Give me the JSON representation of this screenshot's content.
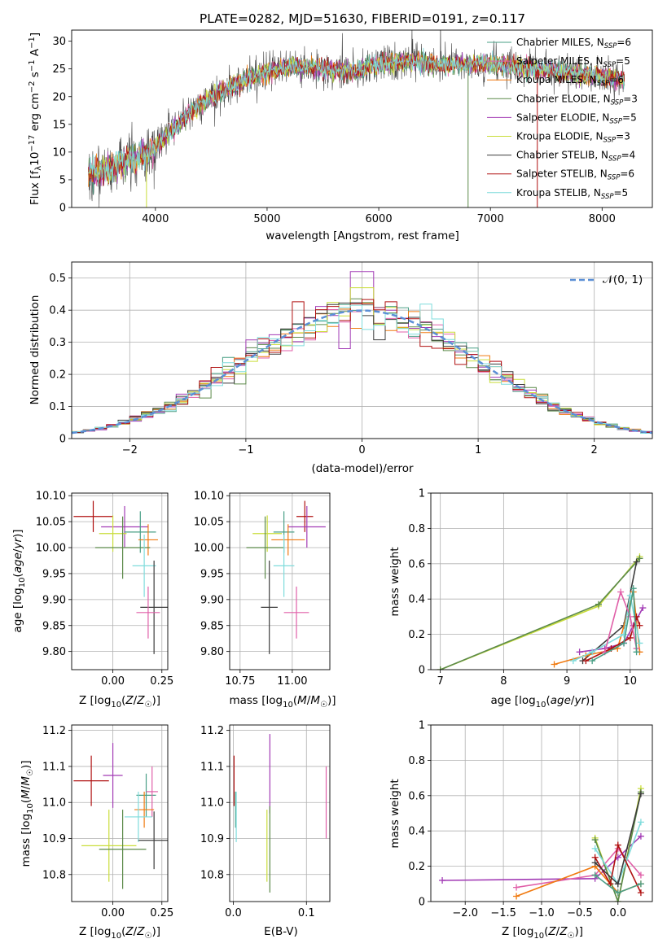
{
  "palette": [
    "#4a9f86",
    "#e05fa8",
    "#f07a10",
    "#5c8a4a",
    "#a23bb5",
    "#c9dd3a",
    "#3c3c3c",
    "#b01010",
    "#7fdcdc"
  ],
  "chart_data": [
    {
      "id": "spectrum",
      "type": "line",
      "title": "PLATE=0282, MJD=51630, FIBERID=0191, z=0.117",
      "xlabel": "wavelength [Angstrom, rest frame]",
      "ylabel": "Flux [f_λ 10^-17 erg cm^-2 s^-1 A^-1]",
      "xlim": [
        3250,
        8450
      ],
      "ylim": [
        0,
        32
      ],
      "xticks": [
        4000,
        5000,
        6000,
        7000,
        8000
      ],
      "yticks": [
        0,
        5,
        10,
        15,
        20,
        25,
        30
      ],
      "x_range": [
        3400,
        8200
      ],
      "profile_x": [
        3400,
        3600,
        3800,
        3950,
        4100,
        4300,
        4500,
        4800,
        5000,
        5200,
        5500,
        5800,
        6000,
        6300,
        6600,
        7000,
        7400,
        7800,
        8200
      ],
      "profile_y": [
        6,
        7,
        9,
        9.5,
        13,
        17,
        20,
        23,
        24.5,
        25.5,
        25,
        24.5,
        26,
        26.5,
        25.5,
        26,
        25,
        24,
        23
      ],
      "legend": [
        {
          "pre": "Chabrier MILES, N",
          "sub": "SSP",
          "post": "=6"
        },
        {
          "pre": "Salpeter MILES, N",
          "sub": "SSP",
          "post": "=5"
        },
        {
          "pre": "Kroupa MILES, N",
          "sub": "SSP",
          "post": "=6"
        },
        {
          "pre": "Chabrier ELODIE, N",
          "sub": "SSP",
          "post": "=3"
        },
        {
          "pre": "Salpeter ELODIE, N",
          "sub": "SSP",
          "post": "=5"
        },
        {
          "pre": "Kroupa ELODIE, N",
          "sub": "SSP",
          "post": "=3"
        },
        {
          "pre": "Chabrier STELIB, N",
          "sub": "SSP",
          "post": "=4"
        },
        {
          "pre": "Salpeter STELIB, N",
          "sub": "SSP",
          "post": "=6"
        },
        {
          "pre": "Kroupa STELIB, N",
          "sub": "SSP",
          "post": "=5"
        }
      ],
      "drops": [
        {
          "x": 3920,
          "series": 5
        },
        {
          "x": 6800,
          "series": 3
        },
        {
          "x": 7420,
          "series": 7
        }
      ]
    },
    {
      "id": "residuals",
      "type": "histogram",
      "xlabel": "(data-model)/error",
      "ylabel": "Normed distribution",
      "xlim": [
        -2.5,
        2.5
      ],
      "ylim": [
        0,
        0.55
      ],
      "xticks": [
        -2,
        -1,
        0,
        1,
        2
      ],
      "yticks": [
        0.0,
        0.1,
        0.2,
        0.3,
        0.4,
        0.5
      ],
      "bin_width": 0.1,
      "gauss_label": "𝒩(0, 1)"
    },
    {
      "id": "age_vs_Z",
      "type": "scatter",
      "xlabel": "Z [log10(Z/Z☉)]",
      "ylabel": "age [log10(age/yr)]",
      "xlim": [
        -0.21,
        0.28
      ],
      "ylim": [
        9.765,
        10.105
      ],
      "xticks": [
        0.0,
        0.25
      ],
      "xtick_labels": [
        "0.00",
        "0.25"
      ],
      "yticks": [
        9.8,
        9.85,
        9.9,
        9.95,
        10.0,
        10.05,
        10.1
      ],
      "ytick_labels": [
        "9.80",
        "9.85",
        "9.90",
        "9.95",
        "10.00",
        "10.05",
        "10.10"
      ],
      "points": [
        {
          "s": 7,
          "x": -0.1,
          "xe": 0.1,
          "y": 10.06,
          "ye": 0.03
        },
        {
          "s": 4,
          "x": 0.06,
          "xe": 0.12,
          "y": 10.04,
          "ye": 0.04
        },
        {
          "s": 0,
          "x": 0.14,
          "xe": 0.08,
          "y": 10.03,
          "ye": 0.04
        },
        {
          "s": 5,
          "x": 0.0,
          "xe": 0.07,
          "y": 10.027,
          "ye": 0.035
        },
        {
          "s": 2,
          "x": 0.18,
          "xe": 0.05,
          "y": 10.015,
          "ye": 0.03
        },
        {
          "s": 3,
          "x": 0.05,
          "xe": 0.14,
          "y": 10.0,
          "ye": 0.06
        },
        {
          "s": 8,
          "x": 0.16,
          "xe": 0.06,
          "y": 9.965,
          "ye": 0.06
        },
        {
          "s": 6,
          "x": 0.21,
          "xe": 0.07,
          "y": 9.885,
          "ye": 0.09
        },
        {
          "s": 1,
          "x": 0.18,
          "xe": 0.06,
          "y": 9.875,
          "ye": 0.05
        }
      ]
    },
    {
      "id": "age_vs_mass",
      "type": "scatter",
      "xlabel": "mass [log10(M/M☉)]",
      "ylabel": "",
      "xlim": [
        10.7,
        11.18
      ],
      "ylim": [
        9.765,
        10.105
      ],
      "xticks": [
        10.75,
        11.0
      ],
      "xtick_labels": [
        "10.75",
        "11.00"
      ],
      "yticks": [
        9.8,
        9.85,
        9.9,
        9.95,
        10.0,
        10.05,
        10.1
      ],
      "ytick_labels": [
        "9.80",
        "9.85",
        "9.90",
        "9.95",
        "10.00",
        "10.05",
        "10.10"
      ],
      "points": [
        {
          "s": 7,
          "x": 11.06,
          "xe": 0.04,
          "y": 10.06,
          "ye": 0.03
        },
        {
          "s": 4,
          "x": 11.07,
          "xe": 0.09,
          "y": 10.04,
          "ye": 0.04
        },
        {
          "s": 0,
          "x": 10.96,
          "xe": 0.05,
          "y": 10.03,
          "ye": 0.04
        },
        {
          "s": 5,
          "x": 10.88,
          "xe": 0.07,
          "y": 10.027,
          "ye": 0.035
        },
        {
          "s": 2,
          "x": 10.98,
          "xe": 0.08,
          "y": 10.015,
          "ye": 0.03
        },
        {
          "s": 3,
          "x": 10.87,
          "xe": 0.09,
          "y": 10.0,
          "ye": 0.06
        },
        {
          "s": 8,
          "x": 10.96,
          "xe": 0.05,
          "y": 9.965,
          "ye": 0.06
        },
        {
          "s": 6,
          "x": 10.89,
          "xe": 0.04,
          "y": 9.885,
          "ye": 0.09
        },
        {
          "s": 1,
          "x": 11.02,
          "xe": 0.06,
          "y": 9.875,
          "ye": 0.05
        }
      ]
    },
    {
      "id": "weight_vs_age",
      "type": "line",
      "xlabel": "age [log10(age/yr)]",
      "ylabel": "mass weight",
      "xlim": [
        6.85,
        10.35
      ],
      "ylim": [
        0,
        1.0
      ],
      "xticks": [
        7,
        8,
        9,
        10
      ],
      "yticks": [
        0.0,
        0.2,
        0.4,
        0.6,
        0.8,
        1.0
      ],
      "series": [
        {
          "s": 5,
          "x": [
            7.0,
            9.5,
            10.15
          ],
          "y": [
            0.0,
            0.36,
            0.64
          ]
        },
        {
          "s": 3,
          "x": [
            7.0,
            9.5,
            10.15
          ],
          "y": [
            0.0,
            0.37,
            0.63
          ]
        },
        {
          "s": 6,
          "x": [
            9.25,
            9.9,
            10.1
          ],
          "y": [
            0.05,
            0.25,
            0.61
          ]
        },
        {
          "s": 2,
          "x": [
            8.8,
            9.3,
            9.8,
            10.05,
            10.15
          ],
          "y": [
            0.03,
            0.08,
            0.12,
            0.44,
            0.1
          ]
        },
        {
          "s": 4,
          "x": [
            9.2,
            9.6,
            9.9,
            10.05,
            10.2
          ],
          "y": [
            0.1,
            0.12,
            0.15,
            0.25,
            0.35
          ]
        },
        {
          "s": 8,
          "x": [
            9.1,
            9.4,
            9.9,
            10.0,
            10.15
          ],
          "y": [
            0.05,
            0.1,
            0.2,
            0.42,
            0.15
          ]
        },
        {
          "s": 7,
          "x": [
            9.3,
            9.7,
            10.0,
            10.1,
            10.15
          ],
          "y": [
            0.05,
            0.12,
            0.18,
            0.3,
            0.25
          ]
        },
        {
          "s": 1,
          "x": [
            9.6,
            9.85,
            10.0,
            10.1
          ],
          "y": [
            0.1,
            0.44,
            0.3,
            0.12
          ]
        },
        {
          "s": 0,
          "x": [
            9.4,
            9.9,
            10.05,
            10.1
          ],
          "y": [
            0.05,
            0.15,
            0.46,
            0.1
          ]
        }
      ]
    },
    {
      "id": "mass_vs_Z",
      "type": "scatter",
      "xlabel": "Z [log10(Z/Z☉)]",
      "ylabel": "mass [log10(M/M☉)]",
      "xlim": [
        -0.21,
        0.28
      ],
      "ylim": [
        10.725,
        11.215
      ],
      "xticks": [
        0.0,
        0.25
      ],
      "xtick_labels": [
        "0.00",
        "0.25"
      ],
      "yticks": [
        10.8,
        10.9,
        11.0,
        11.1,
        11.2
      ],
      "ytick_labels": [
        "10.8",
        "10.9",
        "11.0",
        "11.1",
        "11.2"
      ],
      "points": [
        {
          "s": 7,
          "x": -0.11,
          "xe": 0.09,
          "y": 11.06,
          "ye": 0.07
        },
        {
          "s": 4,
          "x": 0.0,
          "xe": 0.05,
          "y": 11.075,
          "ye": 0.09
        },
        {
          "s": 0,
          "x": 0.17,
          "xe": 0.05,
          "y": 11.02,
          "ye": 0.06
        },
        {
          "s": 1,
          "x": 0.2,
          "xe": 0.03,
          "y": 11.03,
          "ye": 0.07
        },
        {
          "s": 2,
          "x": 0.16,
          "xe": 0.05,
          "y": 10.98,
          "ye": 0.05
        },
        {
          "s": 8,
          "x": 0.13,
          "xe": 0.07,
          "y": 10.96,
          "ye": 0.07
        },
        {
          "s": 5,
          "x": -0.02,
          "xe": 0.14,
          "y": 10.88,
          "ye": 0.1
        },
        {
          "s": 3,
          "x": 0.05,
          "xe": 0.12,
          "y": 10.87,
          "ye": 0.11
        },
        {
          "s": 6,
          "x": 0.21,
          "xe": 0.08,
          "y": 10.895,
          "ye": 0.08
        }
      ]
    },
    {
      "id": "mass_vs_ebv",
      "type": "scatter",
      "xlabel": "E(B-V)",
      "ylabel": "",
      "xlim": [
        -0.005,
        0.132
      ],
      "ylim": [
        10.725,
        11.215
      ],
      "xticks": [
        0.0,
        0.1
      ],
      "xtick_labels": [
        "0.0",
        "0.1"
      ],
      "yticks": [
        10.8,
        10.9,
        11.0,
        11.1,
        11.2
      ],
      "ytick_labels": [
        "10.8",
        "10.9",
        "11.0",
        "11.1",
        "11.2"
      ],
      "points": [
        {
          "s": 7,
          "x": 0.001,
          "xe": 0,
          "y": 11.06,
          "ye": 0.07
        },
        {
          "s": 0,
          "x": 0.003,
          "xe": 0,
          "y": 10.98,
          "ye": 0.05
        },
        {
          "s": 8,
          "x": 0.004,
          "xe": 0,
          "y": 10.96,
          "ye": 0.07
        },
        {
          "s": 4,
          "x": 0.05,
          "xe": 0,
          "y": 11.08,
          "ye": 0.11
        },
        {
          "s": 5,
          "x": 0.046,
          "xe": 0,
          "y": 10.88,
          "ye": 0.1
        },
        {
          "s": 3,
          "x": 0.05,
          "xe": 0,
          "y": 10.87,
          "ye": 0.12
        },
        {
          "s": 1,
          "x": 0.127,
          "xe": 0,
          "y": 11.0,
          "ye": 0.1
        }
      ]
    },
    {
      "id": "weight_vs_Z",
      "type": "line",
      "xlabel": "Z [log10(Z/Z☉)]",
      "ylabel": "mass weight",
      "xlim": [
        -2.45,
        0.45
      ],
      "ylim": [
        0,
        1.0
      ],
      "xticks": [
        -2.0,
        -1.5,
        -1.0,
        -0.5,
        0.0
      ],
      "xtick_labels": [
        "−2.0",
        "−1.5",
        "−1.0",
        "−0.5",
        "0.0"
      ],
      "yticks": [
        0.0,
        0.2,
        0.4,
        0.6,
        0.8,
        1.0
      ],
      "series": [
        {
          "s": 4,
          "x": [
            -2.3,
            -0.3,
            0.0,
            0.3
          ],
          "y": [
            0.12,
            0.13,
            0.25,
            0.37
          ]
        },
        {
          "s": 1,
          "x": [
            -1.33,
            -0.3,
            0.0,
            0.3
          ],
          "y": [
            0.08,
            0.15,
            0.3,
            0.15
          ]
        },
        {
          "s": 2,
          "x": [
            -1.33,
            -0.3,
            0.0,
            0.3
          ],
          "y": [
            0.03,
            0.2,
            0.05,
            0.1
          ]
        },
        {
          "s": 5,
          "x": [
            -0.3,
            0.0,
            0.3
          ],
          "y": [
            0.36,
            0.0,
            0.64
          ]
        },
        {
          "s": 3,
          "x": [
            -0.3,
            0.0,
            0.3
          ],
          "y": [
            0.35,
            0.0,
            0.62
          ]
        },
        {
          "s": 8,
          "x": [
            -0.3,
            0.0,
            0.3
          ],
          "y": [
            0.3,
            0.1,
            0.45
          ]
        },
        {
          "s": 7,
          "x": [
            -0.3,
            -0.1,
            0.0,
            0.3
          ],
          "y": [
            0.25,
            0.1,
            0.32,
            0.05
          ]
        },
        {
          "s": 6,
          "x": [
            -0.3,
            0.0,
            0.3
          ],
          "y": [
            0.22,
            0.1,
            0.61
          ]
        },
        {
          "s": 0,
          "x": [
            -0.3,
            0.0,
            0.3
          ],
          "y": [
            0.15,
            0.05,
            0.1
          ]
        }
      ]
    }
  ]
}
